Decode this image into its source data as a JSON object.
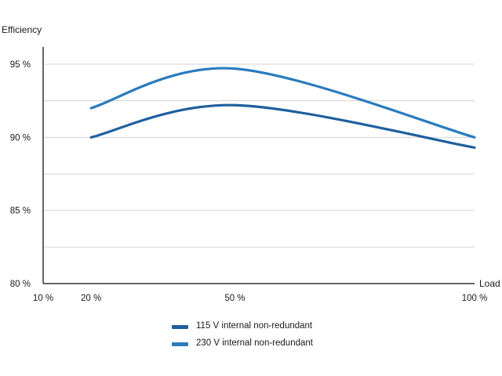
{
  "chart_data": {
    "type": "line",
    "title": "",
    "ylabel": "Efficiency",
    "xlabel": "Load",
    "x_ticks": [
      10,
      20,
      50,
      100
    ],
    "x_tick_labels": [
      "10 %",
      "20 %",
      "50 %",
      "100 %"
    ],
    "y_ticks": [
      80,
      85,
      90,
      95
    ],
    "y_tick_labels": [
      "80 %",
      "85 %",
      "90 %",
      "95 %"
    ],
    "xlim": [
      10,
      100
    ],
    "ylim": [
      80,
      96
    ],
    "grid": "horizontal",
    "legend_position": "bottom",
    "series": [
      {
        "name": "115 V internal non-redundant",
        "color": "#1f5f9e",
        "x": [
          20,
          50,
          100
        ],
        "y": [
          90.0,
          92.2,
          89.3
        ]
      },
      {
        "name": "230 V internal non-redundant",
        "color": "#2a7bbf",
        "x": [
          20,
          50,
          100
        ],
        "y": [
          92.0,
          94.7,
          90.0
        ]
      }
    ]
  }
}
